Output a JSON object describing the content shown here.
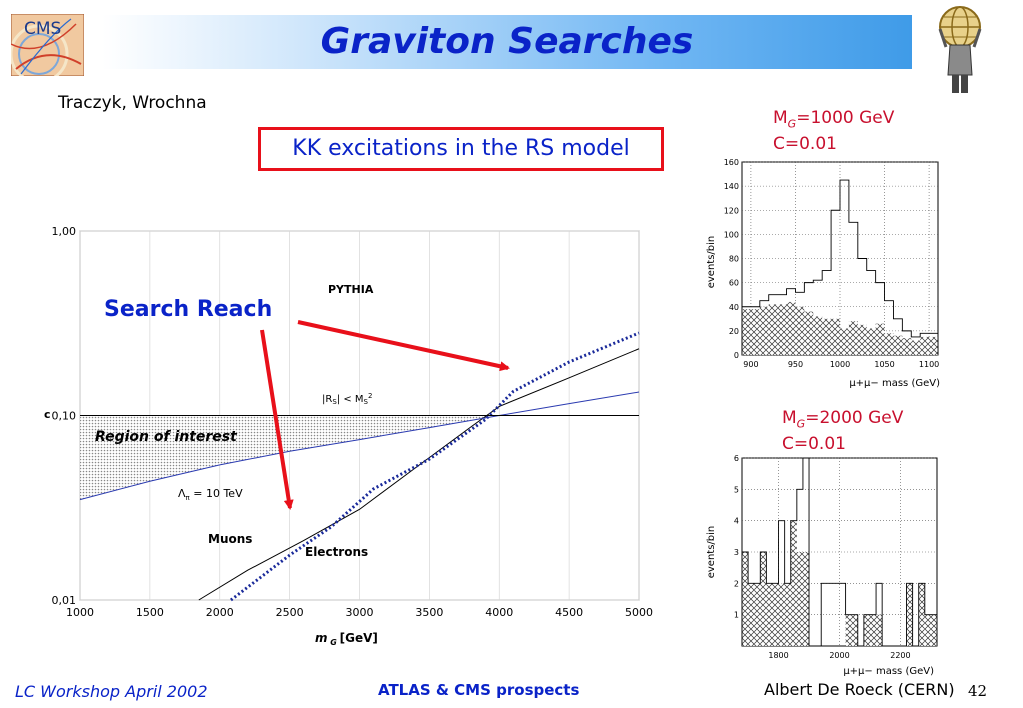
{
  "slide": {
    "title": "Graviton Searches",
    "authors": "Traczyk, Wrochna",
    "box_text": "KK excitations in the RS model",
    "annotation": "Search Reach",
    "hist1_label_mass": "=1000 GeV",
    "hist1_label_c": "C=0.01",
    "hist2_label_mass": "=2000 GeV",
    "hist2_label_c": "C=0.01",
    "label_m": "M",
    "label_sub": "G",
    "footer_left": "LC Workshop  April 2002",
    "footer_middle": "ATLAS & CMS prospects",
    "footer_right": "Albert De Roeck (CERN)",
    "page_number": "42",
    "logo_cms_text": "CMS"
  },
  "colors": {
    "title": "#0a23c8",
    "box_border": "#e8101a",
    "mass_labels": "#c8102e",
    "arrows": "#e8101a"
  },
  "chart_data": [
    {
      "type": "line",
      "xlabel": "m G [GeV]",
      "ylabel": "c",
      "x_ticks": [
        1000,
        1500,
        2000,
        2500,
        3000,
        3500,
        4000,
        4500,
        5000
      ],
      "y_ticks": [
        {
          "v": 0.01,
          "label": "0,01"
        },
        {
          "v": 0.1,
          "label": "0,10"
        },
        {
          "v": 1.0,
          "label": "1,00"
        }
      ],
      "xlim": [
        1000,
        5000
      ],
      "ylim": [
        0.01,
        1.0
      ],
      "y_scale": "log",
      "annotations": {
        "pythia": "PYTHIA",
        "region": "Region of interest",
        "rs_text": "|R",
        "rs_sub": "S",
        "rs_mid": "| < M",
        "rs_sub2": "S",
        "rs_sup": "2",
        "lambda_text": "Λ",
        "lambda_sub": "π",
        "lambda_rest": " = 10 TeV",
        "muons": "Muons",
        "electrons": "Electrons"
      },
      "series": [
        {
          "name": "Muons",
          "x": [
            1850,
            2200,
            2600,
            3000,
            3400,
            3800,
            4000,
            4500,
            5000
          ],
          "y": [
            0.01,
            0.0145,
            0.021,
            0.031,
            0.052,
            0.087,
            0.112,
            0.16,
            0.23
          ]
        },
        {
          "name": "Electrons",
          "x": [
            2080,
            2500,
            2800,
            3100,
            3500,
            3900,
            4100,
            4500,
            5000
          ],
          "y": [
            0.01,
            0.0175,
            0.025,
            0.04,
            0.058,
            0.095,
            0.135,
            0.195,
            0.28
          ]
        },
        {
          "name": "|Rs| < Ms2",
          "x": [
            1000,
            1500,
            2000,
            2500,
            3000,
            3500,
            4000,
            4500,
            5000
          ],
          "y": [
            0.035,
            0.044,
            0.054,
            0.064,
            0.074,
            0.086,
            0.1,
            0.116,
            0.134
          ]
        },
        {
          "name": "c = 0.1",
          "x": [
            1000,
            5000
          ],
          "y": [
            0.1,
            0.1
          ]
        }
      ]
    },
    {
      "type": "bar",
      "title": "M G =1000 GeV C=0.01",
      "ylabel": "events/bin",
      "xlabel": "μ+μ− mass (GeV)",
      "x_ticks": [
        900,
        950,
        1000,
        1050,
        1100
      ],
      "y_ticks": [
        0,
        20,
        40,
        60,
        80,
        100,
        120,
        140,
        160
      ],
      "xlim": [
        890,
        1110
      ],
      "ylim": [
        0,
        160
      ],
      "bin_edges": [
        890,
        900,
        910,
        920,
        930,
        940,
        950,
        960,
        970,
        980,
        990,
        1000,
        1010,
        1020,
        1030,
        1040,
        1050,
        1060,
        1070,
        1080,
        1090,
        1100,
        1110
      ],
      "series": [
        {
          "name": "signal+background",
          "values": [
            40,
            40,
            45,
            50,
            50,
            55,
            52,
            60,
            62,
            70,
            120,
            145,
            110,
            80,
            70,
            60,
            45,
            30,
            20,
            15,
            18,
            18
          ]
        },
        {
          "name": "background",
          "values": [
            38,
            38,
            40,
            42,
            42,
            44,
            40,
            36,
            32,
            30,
            30,
            22,
            28,
            25,
            22,
            26,
            18,
            16,
            14,
            12,
            15,
            15
          ]
        }
      ]
    },
    {
      "type": "bar",
      "title": "M G =2000 GeV C=0.01",
      "ylabel": "events/bin",
      "xlabel": "μ+μ− mass (GeV)",
      "x_ticks": [
        1800,
        2000,
        2200
      ],
      "y_ticks": [
        1,
        2,
        3,
        4,
        5,
        6
      ],
      "xlim": [
        1680,
        2320
      ],
      "ylim": [
        0,
        6
      ],
      "bin_edges": [
        1680,
        1700,
        1720,
        1740,
        1760,
        1780,
        1800,
        1820,
        1840,
        1860,
        1880,
        1900,
        1920,
        1940,
        1960,
        1980,
        2000,
        2020,
        2040,
        2060,
        2080,
        2100,
        2120,
        2140,
        2160,
        2180,
        2200,
        2220,
        2240,
        2260,
        2280,
        2300,
        2320
      ],
      "series": [
        {
          "name": "signal+background",
          "values": [
            3,
            2,
            2,
            3,
            2,
            2,
            4,
            2,
            4,
            5,
            6,
            0,
            0,
            2,
            2,
            2,
            2,
            1,
            1,
            0,
            1,
            1,
            2,
            0,
            0,
            0,
            0,
            2,
            0,
            2,
            1,
            1
          ]
        },
        {
          "name": "background",
          "values": [
            3,
            2,
            2,
            3,
            2,
            2,
            2,
            2,
            4,
            3,
            3,
            0,
            0,
            0,
            0,
            0,
            0,
            1,
            1,
            0,
            1,
            1,
            1,
            0,
            0,
            0,
            0,
            2,
            0,
            2,
            1,
            1
          ]
        }
      ]
    }
  ]
}
